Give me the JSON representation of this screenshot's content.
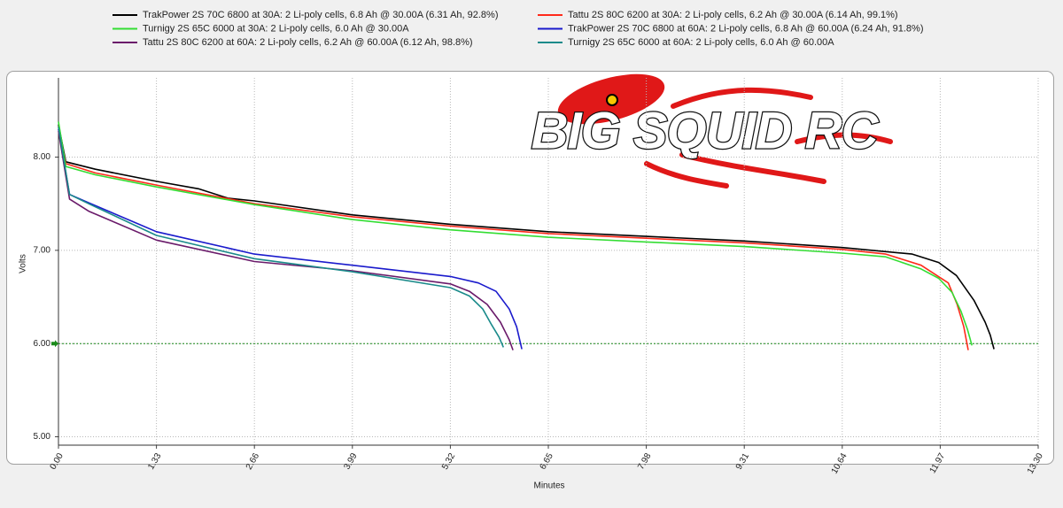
{
  "chart_data": {
    "type": "line",
    "x_label": "Minutes",
    "y_label": "Volts",
    "watermark": "BIG SQUID RC",
    "xlim": [
      0,
      13.3
    ],
    "ylim": [
      4.91,
      8.85
    ],
    "xticks": [
      {
        "value": 0,
        "label": "0.00"
      },
      {
        "value": 1.33,
        "label": "1.33"
      },
      {
        "value": 2.66,
        "label": "2.66"
      },
      {
        "value": 3.99,
        "label": "3.99"
      },
      {
        "value": 5.32,
        "label": "5.32"
      },
      {
        "value": 6.65,
        "label": "6.65"
      },
      {
        "value": 7.98,
        "label": "7.98"
      },
      {
        "value": 9.31,
        "label": "9.31"
      },
      {
        "value": 10.64,
        "label": "10.64"
      },
      {
        "value": 11.97,
        "label": "11.97"
      },
      {
        "value": 13.3,
        "label": "13.30"
      }
    ],
    "yticks": [
      {
        "value": 5,
        "label": "5.00"
      },
      {
        "value": 6,
        "label": "6.00"
      },
      {
        "value": 7,
        "label": "7.00"
      },
      {
        "value": 8,
        "label": "8.00"
      }
    ],
    "grid": true,
    "reference_line": {
      "value": 6,
      "color": "#1a8a1a"
    },
    "series": [
      {
        "name": "TrakPower 2S 70C 6800 at 30A: 2 Li-poly cells, 6.8 Ah @ 30.00A (6.31 Ah, 92.8%)",
        "color": "#000000",
        "x": [
          0,
          0.1,
          0.5,
          1.33,
          1.9,
          2.3,
          2.66,
          3.99,
          5.32,
          6.65,
          7.98,
          9.31,
          10.64,
          11.59,
          11.95,
          12.19,
          12.43,
          12.58,
          12.65,
          12.7
        ],
        "values": [
          8.35,
          7.95,
          7.87,
          7.74,
          7.66,
          7.56,
          7.53,
          7.38,
          7.28,
          7.2,
          7.15,
          7.1,
          7.03,
          6.96,
          6.87,
          6.73,
          6.46,
          6.23,
          6.09,
          5.94
        ]
      },
      {
        "name": "Tattu 2S 80C 6200 at 30A: 2 Li-poly cells, 6.2 Ah @ 30.00A (6.14 Ah, 99.1%)",
        "color": "#ff2a1a",
        "x": [
          0,
          0.1,
          0.5,
          1.33,
          2.66,
          3.99,
          5.32,
          6.65,
          7.98,
          9.31,
          10.64,
          11.23,
          11.71,
          12.08,
          12.2,
          12.29,
          12.35
        ],
        "values": [
          8.3,
          7.93,
          7.83,
          7.7,
          7.5,
          7.36,
          7.26,
          7.18,
          7.13,
          7.08,
          7.01,
          6.96,
          6.84,
          6.65,
          6.42,
          6.18,
          5.93
        ]
      },
      {
        "name": "Turnigy 2S 65C 6000 at 30A: 2 Li-poly cells, 6.0 Ah @ 30.00A",
        "color": "#33dd33",
        "x": [
          0,
          0.1,
          0.5,
          1.33,
          2.66,
          3.99,
          5.32,
          6.65,
          7.98,
          9.31,
          10.64,
          11.23,
          11.71,
          11.95,
          12.13,
          12.25,
          12.34,
          12.4
        ],
        "values": [
          8.38,
          7.9,
          7.81,
          7.68,
          7.49,
          7.33,
          7.22,
          7.14,
          7.09,
          7.04,
          6.97,
          6.93,
          6.8,
          6.7,
          6.55,
          6.35,
          6.15,
          5.98
        ]
      },
      {
        "name": "TrakPower 2S 70C 6800 at 60A: 2 Li-poly cells, 6.8 Ah @ 60.00A (6.24 Ah, 91.8%)",
        "color": "#1a1acc",
        "x": [
          0,
          0.15,
          0.41,
          1.33,
          2.66,
          3.99,
          5.32,
          5.7,
          5.94,
          6.12,
          6.22,
          6.29
        ],
        "values": [
          8.3,
          7.6,
          7.51,
          7.2,
          6.96,
          6.84,
          6.72,
          6.65,
          6.56,
          6.37,
          6.18,
          5.94
        ]
      },
      {
        "name": "Tattu 2S 80C 6200 at 60A: 2 Li-poly cells, 6.2 Ah @ 60.00A (6.12 Ah, 98.8%)",
        "color": "#6a1a6a",
        "x": [
          0,
          0.15,
          0.41,
          1.33,
          2.66,
          3.99,
          5.32,
          5.58,
          5.82,
          6.0,
          6.12,
          6.17
        ],
        "values": [
          8.28,
          7.55,
          7.42,
          7.11,
          6.88,
          6.78,
          6.64,
          6.56,
          6.42,
          6.23,
          6.04,
          5.93
        ]
      },
      {
        "name": "Turnigy 2S 65C 6000 at 60A: 2 Li-poly cells, 6.0 Ah @ 60.00A",
        "color": "#1a8a8a",
        "x": [
          0,
          0.15,
          0.41,
          1.33,
          2.66,
          3.99,
          5.32,
          5.58,
          5.76,
          5.88,
          5.98,
          6.04
        ],
        "values": [
          8.32,
          7.6,
          7.5,
          7.16,
          6.91,
          6.77,
          6.6,
          6.51,
          6.37,
          6.2,
          6.07,
          5.96
        ]
      }
    ]
  }
}
